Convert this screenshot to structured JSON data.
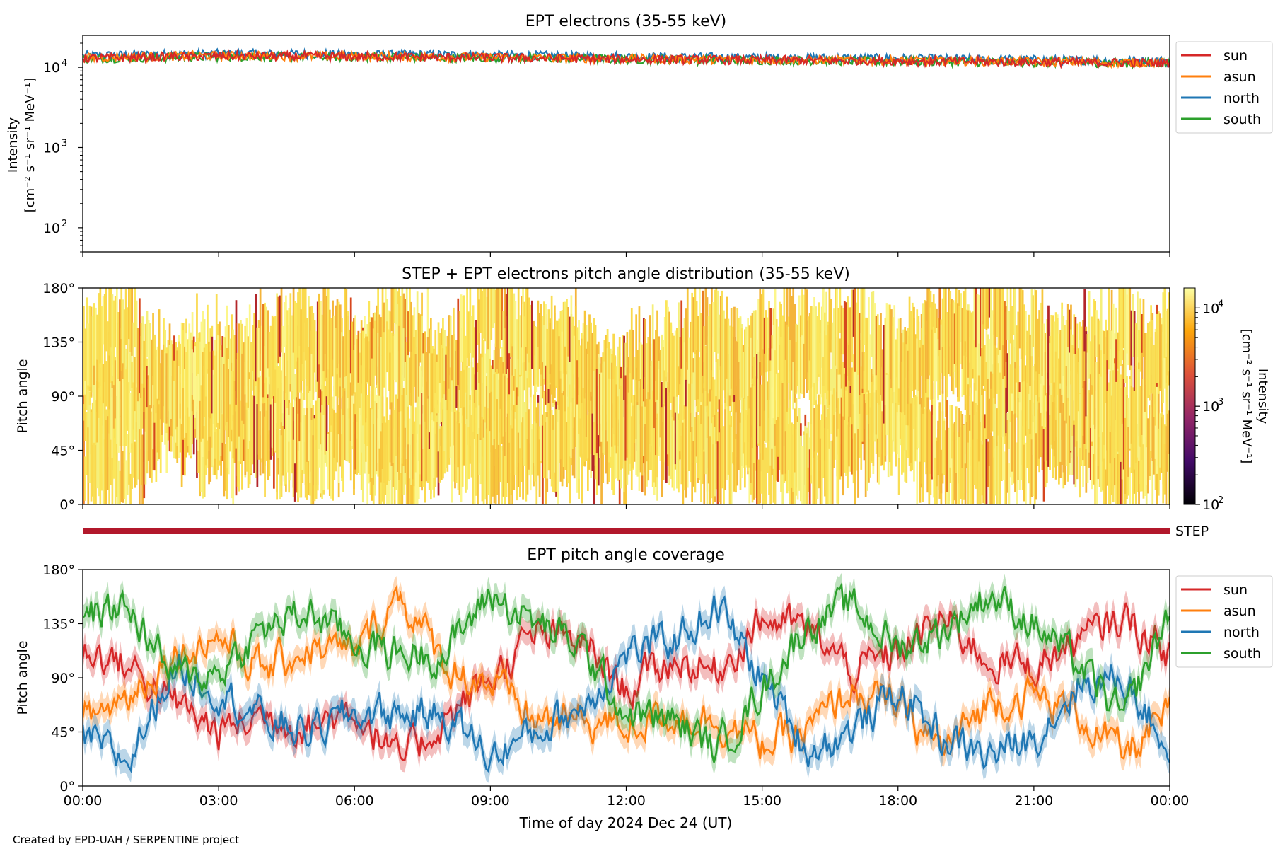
{
  "footer": "Created by EPD-UAH / SERPENTINE project",
  "x_axis": {
    "label": "Time of day 2024 Dec 24 (UT)",
    "ticks": [
      "00:00",
      "03:00",
      "06:00",
      "09:00",
      "12:00",
      "15:00",
      "18:00",
      "21:00",
      "00:00"
    ],
    "range_hours": [
      0,
      24
    ]
  },
  "colors": {
    "sun": "#d62728",
    "asun": "#ff7f0e",
    "north": "#1f77b4",
    "south": "#2ca02c",
    "step_bar": "#b2182b"
  },
  "chart_data": [
    {
      "type": "line",
      "title": "EPT electrons (35-55 keV)",
      "ylabel_line1": "Intensity",
      "ylabel_line2": "[cm⁻² s⁻¹ sr⁻¹ MeV⁻¹]",
      "yscale": "log",
      "ylim": [
        50,
        25000
      ],
      "yticks": [
        {
          "value": 100,
          "base": "10",
          "exp": "2"
        },
        {
          "value": 1000,
          "base": "10",
          "exp": "3"
        },
        {
          "value": 10000,
          "base": "10",
          "exp": "4"
        }
      ],
      "legend_position": "outside-right",
      "series": [
        {
          "name": "sun",
          "x": [
            0,
            3,
            6,
            9,
            12,
            15,
            18,
            21,
            24
          ],
          "values": [
            13000,
            13800,
            13600,
            13200,
            12600,
            12300,
            12000,
            11600,
            11300
          ]
        },
        {
          "name": "asun",
          "x": [
            0,
            3,
            6,
            9,
            12,
            15,
            18,
            21,
            24
          ],
          "values": [
            13200,
            13900,
            13700,
            13300,
            12800,
            12400,
            12100,
            11700,
            11400
          ]
        },
        {
          "name": "north",
          "x": [
            0,
            3,
            6,
            9,
            12,
            15,
            18,
            21,
            24
          ],
          "values": [
            14000,
            14800,
            14600,
            14200,
            13600,
            13200,
            12900,
            12400,
            12000
          ]
        },
        {
          "name": "south",
          "x": [
            0,
            3,
            6,
            9,
            12,
            15,
            18,
            21,
            24
          ],
          "values": [
            12800,
            13600,
            13500,
            13100,
            12600,
            12200,
            11900,
            11500,
            11200
          ]
        }
      ]
    },
    {
      "type": "heatmap",
      "title": "STEP + EPT electrons pitch angle distribution (35-55 keV)",
      "ylabel": "Pitch angle",
      "ylim": [
        0,
        180
      ],
      "yticks": [
        "0°",
        "45°",
        "90°",
        "135°",
        "180°"
      ],
      "colorbar": {
        "label_line1": "Intensity",
        "label_line2": "[cm⁻² s⁻¹ sr⁻¹ MeV⁻¹]",
        "scale": "log",
        "range": [
          100,
          16000
        ],
        "ticks": [
          {
            "value": 100,
            "base": "10",
            "exp": "2"
          },
          {
            "value": 1000,
            "base": "10",
            "exp": "3"
          },
          {
            "value": 10000,
            "base": "10",
            "exp": "4"
          }
        ],
        "colormap": "inferno"
      },
      "typical_intensity": 13000
    },
    {
      "type": "bar",
      "label": "STEP",
      "coverage_hours": [
        0,
        24
      ]
    },
    {
      "type": "line",
      "title": "EPT pitch angle coverage",
      "ylabel": "Pitch angle",
      "ylim": [
        0,
        180
      ],
      "yticks": [
        "0°",
        "45°",
        "90°",
        "135°",
        "180°"
      ],
      "legend_position": "outside-right",
      "x": [
        0,
        1,
        2,
        3,
        4,
        5,
        6,
        7,
        8,
        9,
        10,
        11,
        12,
        13,
        14,
        15,
        16,
        17,
        18,
        19,
        20,
        21,
        22,
        23,
        24
      ],
      "series": [
        {
          "name": "sun",
          "values": [
            115,
            100,
            70,
            45,
            60,
            50,
            65,
            20,
            55,
            90,
            125,
            120,
            80,
            105,
            95,
            140,
            130,
            95,
            110,
            140,
            105,
            100,
            120,
            140,
            110
          ]
        },
        {
          "name": "asun",
          "values": [
            55,
            75,
            110,
            125,
            95,
            115,
            110,
            160,
            100,
            85,
            55,
            55,
            50,
            60,
            55,
            35,
            45,
            80,
            65,
            30,
            70,
            75,
            60,
            25,
            60
          ]
        },
        {
          "name": "north",
          "values": [
            40,
            20,
            100,
            80,
            55,
            45,
            60,
            60,
            60,
            25,
            45,
            65,
            110,
            120,
            150,
            90,
            30,
            45,
            80,
            40,
            25,
            40,
            85,
            90,
            30
          ]
        },
        {
          "name": "south",
          "values": [
            140,
            150,
            90,
            95,
            130,
            145,
            120,
            110,
            110,
            160,
            135,
            115,
            60,
            55,
            30,
            80,
            135,
            150,
            115,
            130,
            160,
            135,
            100,
            55,
            145
          ]
        }
      ],
      "band_halfwidth": 10
    }
  ]
}
